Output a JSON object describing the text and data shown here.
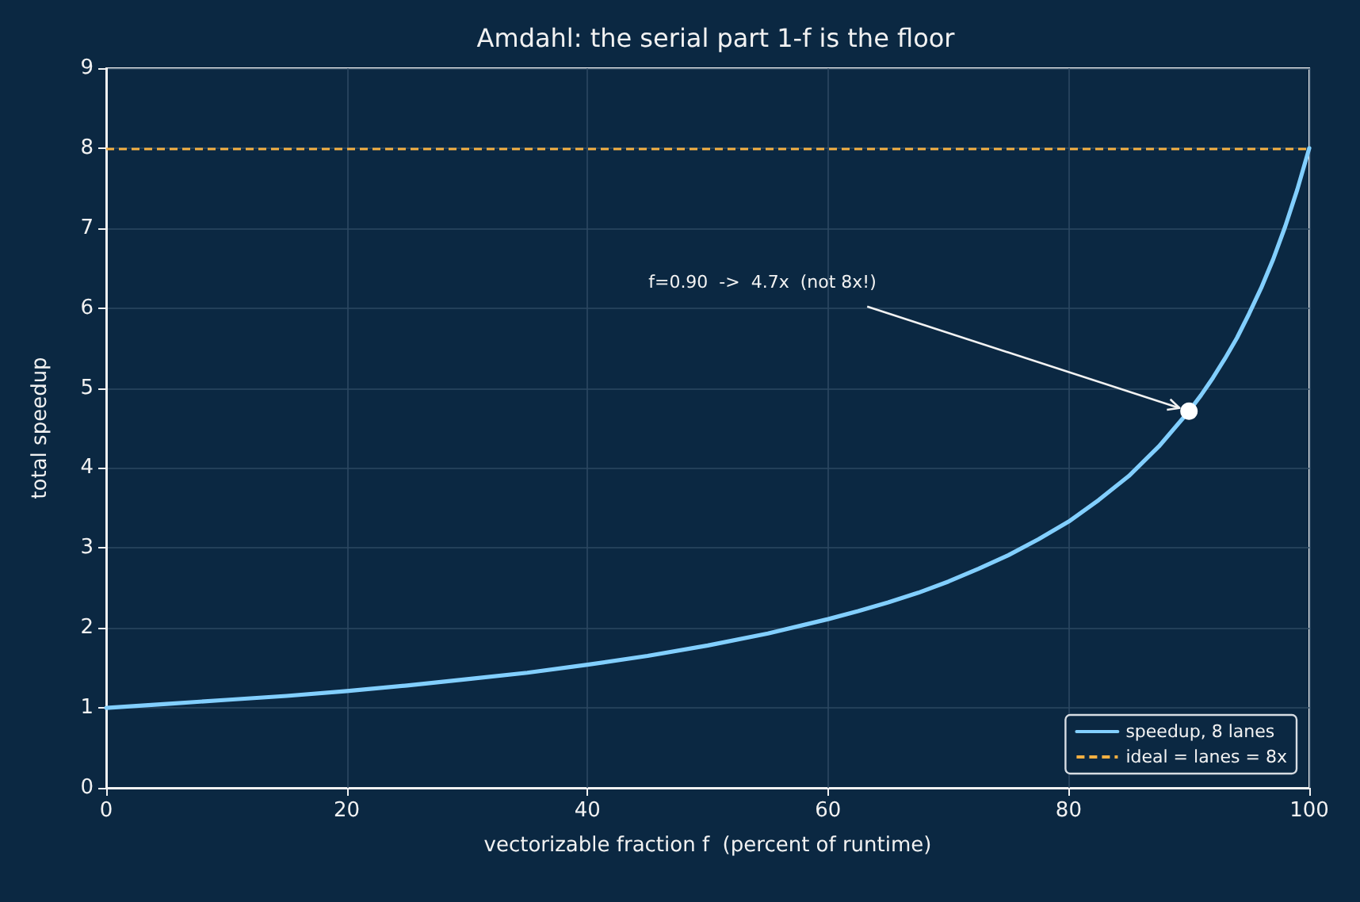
{
  "chart_data": {
    "type": "line",
    "title": "Amdahl: the serial part 1-f is the floor",
    "xlabel": "vectorizable fraction f  (percent of runtime)",
    "ylabel": "total speedup",
    "x": [
      0,
      5,
      10,
      15,
      20,
      25,
      30,
      35,
      40,
      45,
      50,
      55,
      60,
      62.5,
      65,
      67.5,
      70,
      72.5,
      75,
      77.5,
      80,
      82.5,
      85,
      87.5,
      90,
      91,
      92,
      93,
      94,
      95,
      96,
      97,
      98,
      99,
      100
    ],
    "series": [
      {
        "name": "speedup, 8 lanes",
        "color": "#82cfff",
        "values": [
          1,
          1.05,
          1.1,
          1.15,
          1.21,
          1.28,
          1.36,
          1.44,
          1.54,
          1.65,
          1.78,
          1.93,
          2.11,
          2.21,
          2.32,
          2.44,
          2.58,
          2.74,
          2.91,
          3.11,
          3.33,
          3.6,
          3.9,
          4.27,
          4.71,
          4.91,
          5.13,
          5.37,
          5.63,
          5.93,
          6.25,
          6.61,
          7.02,
          7.48,
          8
        ]
      },
      {
        "type": "scatter",
        "color": "#ffffff",
        "marker": "circle",
        "x": [
          90
        ],
        "values": [
          4.71
        ]
      }
    ],
    "ref_lines": [
      {
        "axis": "y",
        "value": 8,
        "label": "ideal = lanes = 8x",
        "color": "#f5b042",
        "line_style": "dashed"
      }
    ],
    "annotations": [
      {
        "text": "f=0.90  ->  4.7x  (not 8x!)",
        "x": 90,
        "y": 4.71
      }
    ],
    "xlim": [
      0,
      100
    ],
    "ylim": [
      0,
      9
    ],
    "xticks": [
      0,
      20,
      40,
      60,
      80,
      100
    ],
    "yticks": [
      0,
      1,
      2,
      3,
      4,
      5,
      6,
      7,
      8,
      9
    ],
    "grid": true,
    "legend": "bottom right",
    "marker": "none",
    "line_style": "solid"
  }
}
